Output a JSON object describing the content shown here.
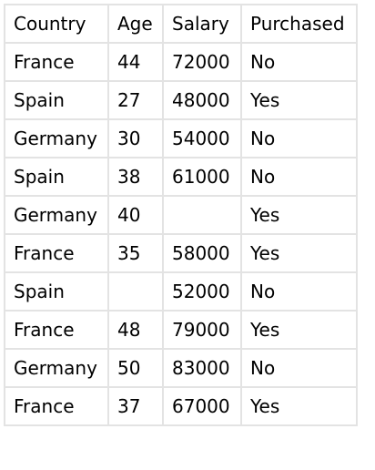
{
  "table": {
    "headers": [
      "Country",
      "Age",
      "Salary",
      "Purchased"
    ],
    "rows": [
      [
        "France",
        "44",
        "72000",
        "No"
      ],
      [
        "Spain",
        "27",
        "48000",
        "Yes"
      ],
      [
        "Germany",
        "30",
        "54000",
        "No"
      ],
      [
        "Spain",
        "38",
        "61000",
        "No"
      ],
      [
        "Germany",
        "40",
        "",
        "Yes"
      ],
      [
        "France",
        "35",
        "58000",
        "Yes"
      ],
      [
        "Spain",
        "",
        "52000",
        "No"
      ],
      [
        "France",
        "48",
        "79000",
        "Yes"
      ],
      [
        "Germany",
        "50",
        "83000",
        "No"
      ],
      [
        "France",
        "37",
        "67000",
        "Yes"
      ]
    ]
  }
}
